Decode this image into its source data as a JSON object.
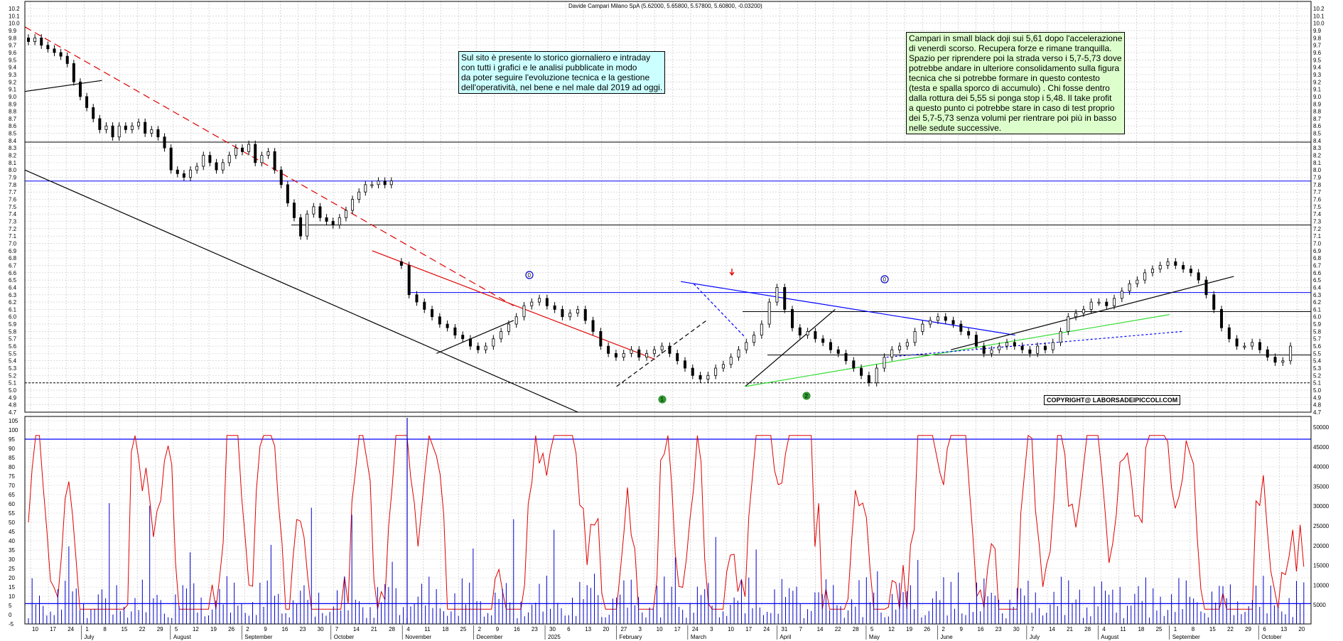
{
  "chart_data": {
    "type": "candlestick",
    "title": "Davide Campari Milano SpA (5.62000, 5.65800, 5.57800, 5.60800, -0.03200)",
    "price_axis": {
      "min": 4.7,
      "max": 10.2,
      "step": 0.1
    },
    "oscillator_axis": {
      "min": -5,
      "max": 105,
      "ticks": [
        -5,
        0,
        5,
        10,
        15,
        20,
        25,
        30,
        35,
        40,
        45,
        50,
        55,
        60,
        65,
        70,
        75,
        80,
        85,
        90,
        95,
        100,
        105
      ]
    },
    "volume_axis": {
      "ticks": [
        "5000",
        "10000",
        "15000",
        "20000",
        "25000",
        "30000",
        "35000",
        "40000",
        "45000",
        "50000"
      ]
    },
    "x_ticks": [
      "10",
      "17",
      "24",
      "1",
      "8",
      "15",
      "22",
      "29",
      "5",
      "12",
      "19",
      "26",
      "2",
      "9",
      "16",
      "23",
      "30",
      "7",
      "14",
      "21",
      "28",
      "4",
      "11",
      "18",
      "25",
      "2",
      "9",
      "16",
      "23",
      "30",
      "6",
      "13",
      "20",
      "27",
      "3",
      "10",
      "17",
      "24",
      "3",
      "10",
      "17",
      "24",
      "31",
      "7",
      "14",
      "22",
      "28",
      "5",
      "12",
      "19",
      "26",
      "2",
      "9",
      "16",
      "23",
      "30",
      "7",
      "14",
      "21",
      "28",
      "4",
      "11",
      "18",
      "25",
      "1",
      "8",
      "15",
      "22",
      "29",
      "6",
      "13",
      "20"
    ],
    "x_months": [
      "July",
      "August",
      "September",
      "October",
      "November",
      "December",
      "2025",
      "February",
      "March",
      "April",
      "May",
      "June",
      "July",
      "August",
      "September",
      "October"
    ],
    "close_path": [
      [
        9.75,
        9.8,
        9.7,
        9.65,
        9.6,
        9.55,
        9.45,
        9.2,
        9.0,
        8.85,
        8.7,
        8.55,
        8.6,
        8.45,
        8.6,
        8.55,
        8.6,
        8.65,
        8.5,
        8.55,
        8.45,
        8.3,
        8.0,
        7.95,
        7.9,
        8.0,
        8.05,
        8.2,
        8.1,
        8.0,
        8.1,
        8.2,
        8.3,
        8.25,
        8.35,
        8.1,
        8.2,
        8.25,
        8.0,
        7.8,
        7.55,
        7.35,
        7.1,
        7.4,
        7.5,
        7.35,
        7.3,
        7.25,
        7.35,
        7.45,
        7.6,
        7.7,
        7.8,
        7.8,
        7.85,
        7.8,
        7.85
      ],
      [
        6.7,
        6.3,
        6.2,
        6.1,
        6.0,
        5.9,
        5.85,
        5.75,
        5.7,
        5.6,
        5.55,
        5.6,
        5.7,
        5.8,
        5.9,
        6.0,
        6.15,
        6.2,
        6.25,
        6.15,
        6.1,
        6.0,
        6.05,
        6.1,
        5.95,
        5.8,
        5.6,
        5.5,
        5.45,
        5.5,
        5.55,
        5.45,
        5.5,
        5.55,
        5.6,
        5.5,
        5.4,
        5.3,
        5.2,
        5.15,
        5.2,
        5.3,
        5.35,
        5.45,
        5.55,
        5.65,
        5.75,
        5.9,
        6.2,
        6.4,
        6.1,
        5.85,
        5.75,
        5.8,
        5.7,
        5.65,
        5.55,
        5.5,
        5.4,
        5.3,
        5.2,
        5.1,
        5.3,
        5.45,
        5.55,
        5.6,
        5.65,
        5.8,
        5.9,
        5.95,
        6.0,
        5.95,
        5.9,
        5.8,
        5.75,
        5.6,
        5.5,
        5.55,
        5.6,
        5.65,
        5.6,
        5.55,
        5.5,
        5.6,
        5.55,
        5.65,
        5.8,
        6.0,
        6.05,
        6.1,
        6.2,
        6.2,
        6.15,
        6.25,
        6.35,
        6.45,
        6.5,
        6.6,
        6.65,
        6.7,
        6.75,
        6.7,
        6.65,
        6.6,
        6.5,
        6.3,
        6.1,
        5.85,
        5.7,
        5.6,
        5.6,
        5.65,
        5.55,
        5.45,
        5.38,
        5.4,
        5.6
      ]
    ],
    "annotations": [
      "0",
      "0",
      "1",
      "2"
    ],
    "note_1": [
      "Sul sito è presente lo storico giornaliero e intraday",
      "con tutti i grafici e le analisi pubblicate in modo",
      "da poter seguire l'evoluzione tecnica e la gestione",
      "dell'operatività, nel bene e nel male dal 2019 ad oggi."
    ],
    "note_2": [
      "Campari in small black doji sui 5,61 dopo l'accelerazione",
      "di venerdì scorso. Recupera forze e rimane tranquilla.",
      "Spazio per riprendere poi la strada verso i 5,7-5,73 dove",
      "potrebbe andare in ulteriore consolidamento sulla figura",
      "tecnica che si potrebbe formare in questo contesto",
      "(testa e spalla sporco di accumulo) . Chi fosse dentro",
      "dalla rottura dei 5,55 si ponga stop i 5,48. Il take profit",
      "a questo punto ci potrebbe stare in caso di test proprio",
      "dei 5,7-5,73 senza volumi per rientrare poi più in basso",
      "nelle sedute successive."
    ],
    "copyright": "COPYRIGHT@ LABORSADEIPICCOLI.COM",
    "colors": {
      "grid": "#c8c8c8",
      "oscillator": "#e00000",
      "volume": "#0000cc",
      "resistance": "#0000ff",
      "trend_red": "#e00000",
      "trend_green": "#33dd33"
    }
  }
}
